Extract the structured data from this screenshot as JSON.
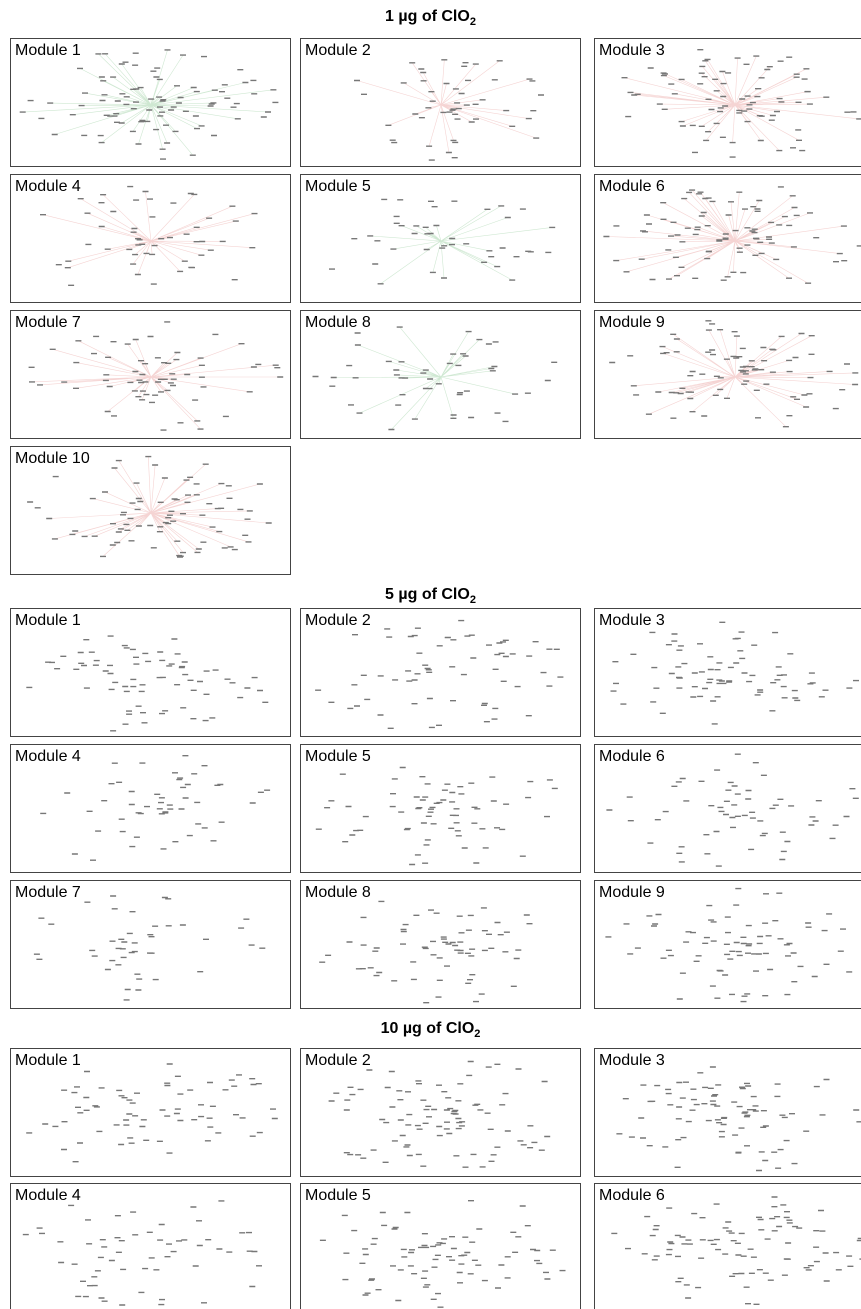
{
  "sections": [
    {
      "title": {
        "text": "1 µg of  ClO",
        "subscript": "2"
      },
      "modules": [
        "Module 1",
        "Module 2",
        "Module 3",
        "Module 4",
        "Module 5",
        "Module 6",
        "Module 7",
        "Module 8",
        "Module 9",
        "Module 10"
      ]
    },
    {
      "title": {
        "text": "5 µg of ClO",
        "subscript": "2"
      },
      "modules": [
        "Module 1",
        "Module 2",
        "Module 3",
        "Module 4",
        "Module 5",
        "Module 6",
        "Module 7",
        "Module 8",
        "Module 9"
      ]
    },
    {
      "title": {
        "text": "10 µg of ClO",
        "subscript": "2"
      },
      "modules": [
        "Module 1",
        "Module 2",
        "Module 3",
        "Module 4",
        "Module 5",
        "Module 6"
      ]
    }
  ]
}
